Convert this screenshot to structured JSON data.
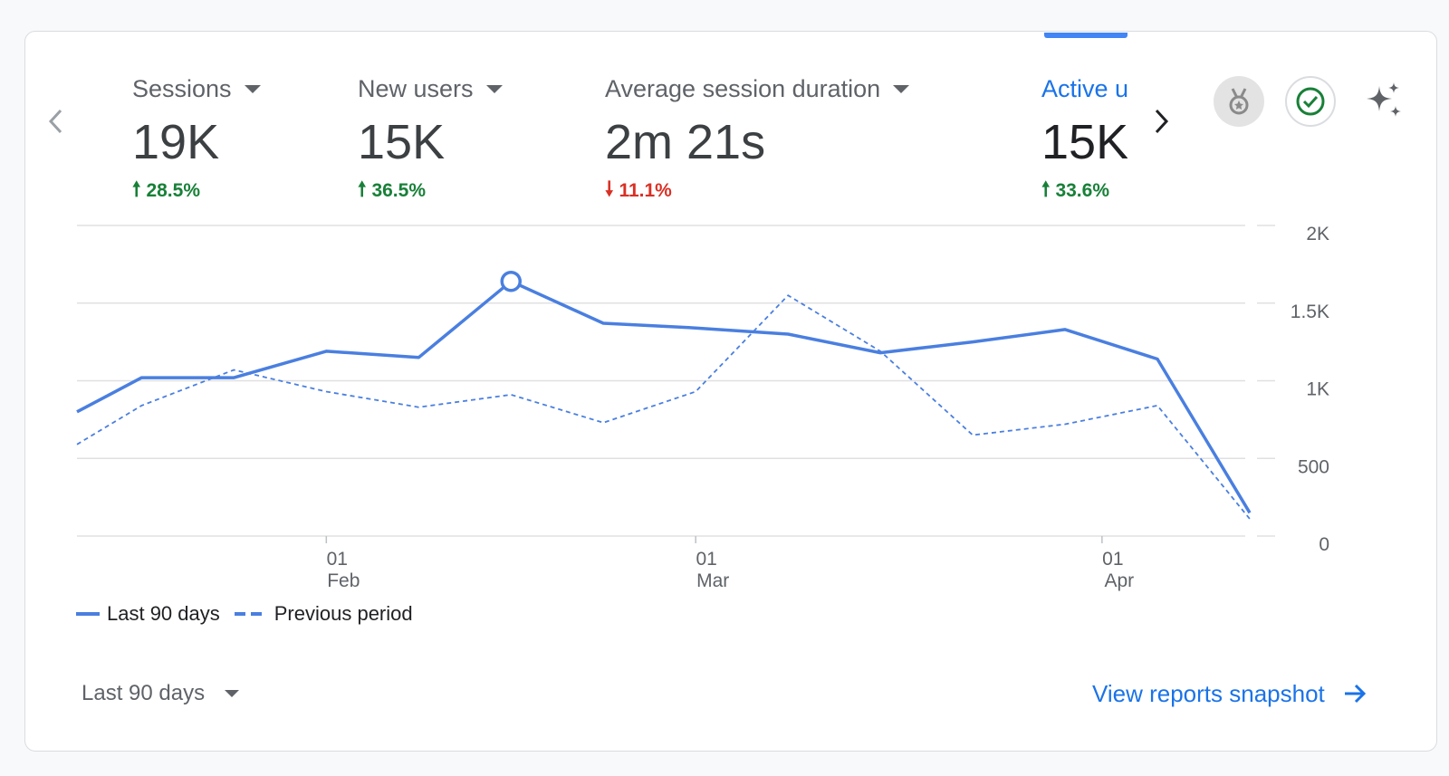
{
  "metrics": [
    {
      "label": "Sessions",
      "value": "19K",
      "change": "28.5%",
      "direction": "up"
    },
    {
      "label": "New users",
      "value": "15K",
      "change": "36.5%",
      "direction": "up"
    },
    {
      "label": "Average session duration",
      "value": "2m 21s",
      "change": "11.1%",
      "direction": "down"
    },
    {
      "label": "Active users",
      "value": "15K",
      "change": "33.6%",
      "direction": "up"
    }
  ],
  "icons": {
    "prev": "chevron-left-icon",
    "next": "chevron-right-icon",
    "medal": "medal-icon",
    "check": "check-circle-icon",
    "sparkle": "sparkle-icon"
  },
  "colors": {
    "accent": "#1a73e8",
    "line": "#4a7fe0",
    "up": "#188038",
    "down": "#d93025"
  },
  "chart_data": {
    "type": "line",
    "title": "",
    "xlabel": "",
    "ylabel": "",
    "ylim": [
      0,
      2000
    ],
    "y_ticks": [
      "0",
      "500",
      "1K",
      "1.5K",
      "2K"
    ],
    "y_tick_values": [
      0,
      500,
      1000,
      1500,
      2000
    ],
    "x_ticks": [
      {
        "day": "01",
        "month": "Feb",
        "index": 2.7
      },
      {
        "day": "01",
        "month": "Mar",
        "index": 6.7
      },
      {
        "day": "01",
        "month": "Apr",
        "index": 11.1
      }
    ],
    "x": [
      0,
      0.7,
      1.7,
      3.7,
      4.7,
      5.7,
      6.7,
      7.7,
      8.7,
      9.7,
      10.7,
      11.7,
      12.7
    ],
    "series": [
      {
        "name": "Last 90 days",
        "style": "solid",
        "x": [
          0,
          0.7,
          1.7,
          2.7,
          3.7,
          4.7,
          5.7,
          6.7,
          7.7,
          8.7,
          9.7,
          10.7,
          11.7,
          12.7
        ],
        "values": [
          800,
          1020,
          1020,
          1190,
          1150,
          1640,
          1370,
          1340,
          1300,
          1180,
          1250,
          1330,
          1140,
          150
        ],
        "highlight_index": 5
      },
      {
        "name": "Previous period",
        "style": "dashed",
        "x": [
          0,
          0.7,
          1.7,
          2.7,
          3.7,
          4.7,
          5.7,
          6.7,
          7.7,
          8.7,
          9.7,
          10.7,
          11.7,
          12.7
        ],
        "values": [
          590,
          840,
          1070,
          930,
          830,
          910,
          730,
          930,
          1550,
          1190,
          650,
          720,
          840,
          110
        ]
      }
    ]
  },
  "legend": {
    "current": "Last 90 days",
    "previous": "Previous period"
  },
  "footer": {
    "range_label": "Last 90 days",
    "link_label": "View reports snapshot"
  }
}
